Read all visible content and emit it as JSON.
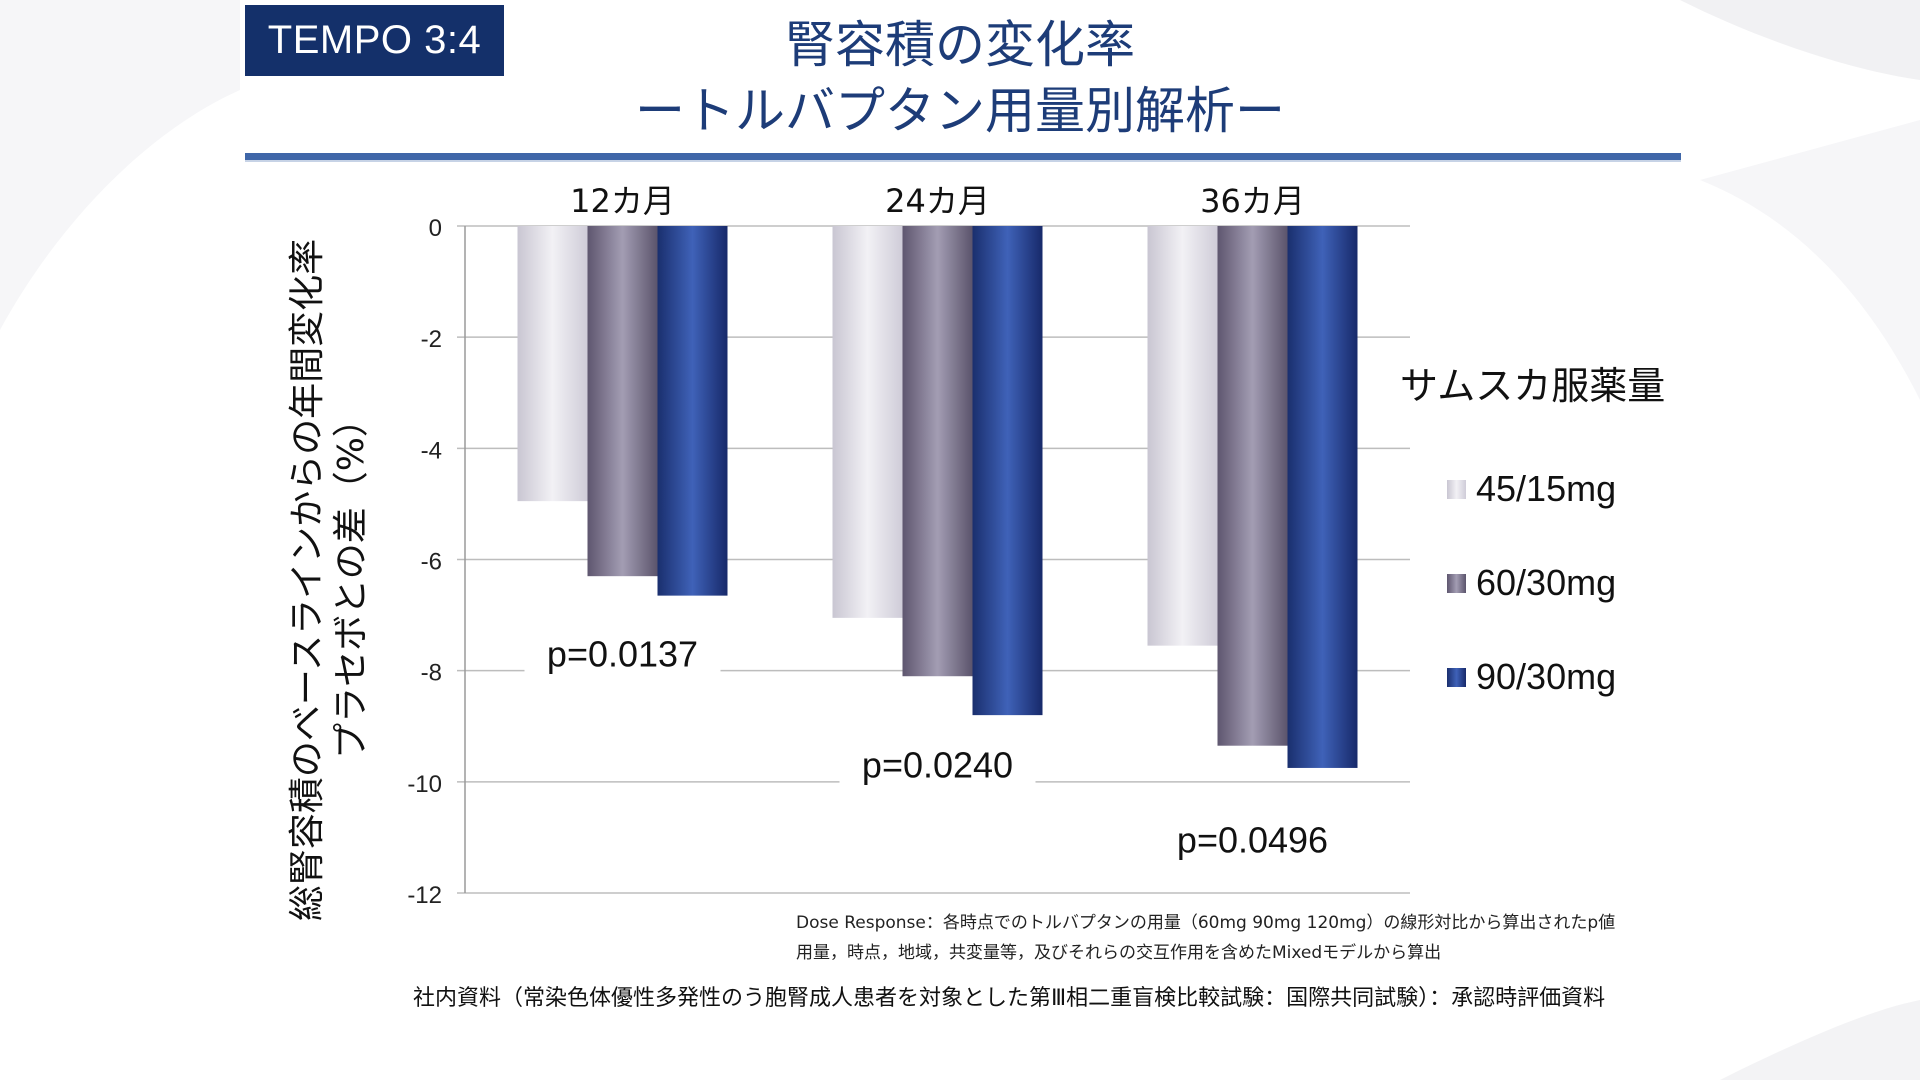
{
  "tag": "TEMPO 3:4",
  "title_line1": "腎容積の変化率",
  "title_line2": "ートルバプタン用量別解析ー",
  "ylabel_line1": "総腎容積のベースラインからの年間変化率",
  "ylabel_line2": "プラセボとの差（%）",
  "legend_title": "サムスカ服薬量",
  "notes": {
    "line1": "Dose Response：各時点でのトルバプタンの用量（60mg 90mg 120mg）の線形対比から算出されたp値",
    "line2": "用量，時点，地域，共変量等，及びそれらの交互作用を含めたMixedモデルから算出"
  },
  "source": "社内資料（常染色体優性多発性のう胞腎成人患者を対象とした第Ⅲ相二重盲検比較試験：国際共同試験）：承認時評価資料",
  "colors": {
    "navy": "#14306a",
    "series1": "#dcdae2",
    "series2": "#7d7690",
    "series3": "#2a4a9c"
  },
  "chart_data": {
    "type": "bar",
    "categories": [
      "12カ月",
      "24カ月",
      "36カ月"
    ],
    "series": [
      {
        "name": "45/15mg",
        "values": [
          -4.95,
          -7.05,
          -7.55
        ]
      },
      {
        "name": "60/30mg",
        "values": [
          -6.3,
          -8.1,
          -9.35
        ]
      },
      {
        "name": "90/30mg",
        "values": [
          -6.65,
          -8.8,
          -9.75
        ]
      }
    ],
    "ylim": [
      -12,
      0
    ],
    "yticks": [
      0,
      -2,
      -4,
      -6,
      -8,
      -10,
      -12
    ],
    "grid": true,
    "legend_position": "right",
    "annotations": [
      {
        "text": "p=0.0137",
        "category": "12カ月",
        "y": -7.85
      },
      {
        "text": "p=0.0240",
        "category": "24カ月",
        "y": -9.85
      },
      {
        "text": "p=0.0496",
        "category": "36カ月",
        "y": -11.2
      }
    ]
  }
}
